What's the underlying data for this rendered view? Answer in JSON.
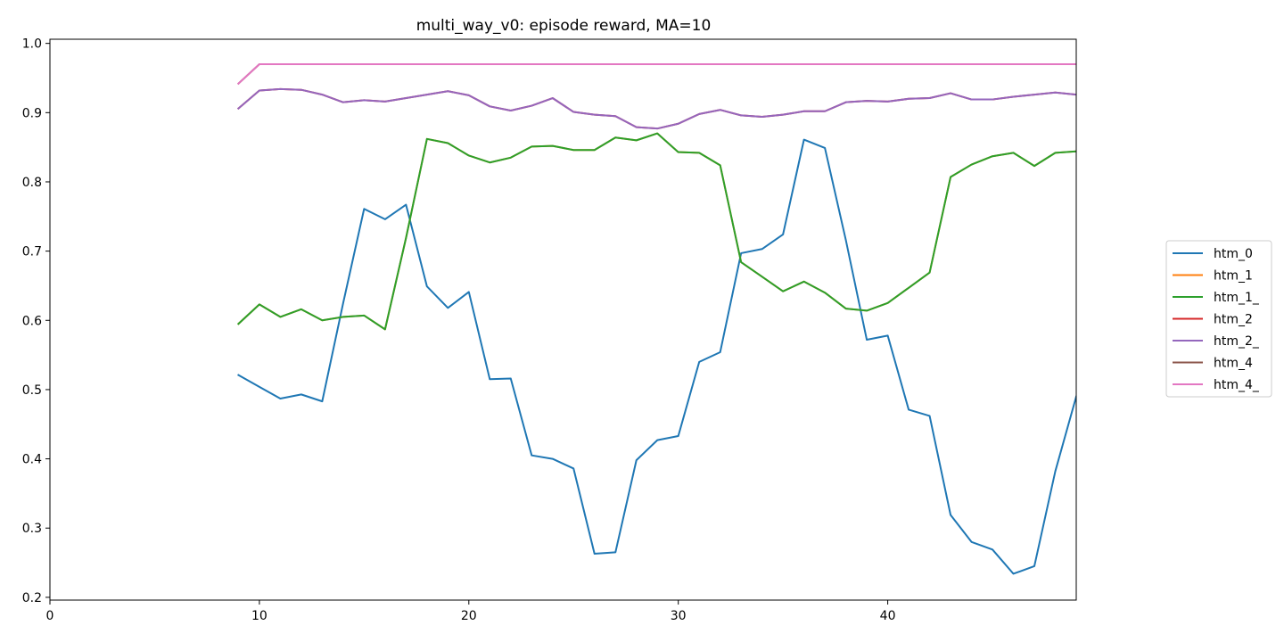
{
  "chart_data": {
    "type": "line",
    "title": "multi_way_v0: episode reward, MA=10",
    "xlabel": "",
    "ylabel": "",
    "xlim": [
      0,
      49
    ],
    "ylim": [
      0.196,
      1.006
    ],
    "xticks": [
      0,
      10,
      20,
      30,
      40
    ],
    "yticks": [
      0.2,
      0.3,
      0.4,
      0.5,
      0.6,
      0.7,
      0.8,
      0.9,
      1.0
    ],
    "grid": false,
    "legend_position": "right",
    "x": [
      9,
      10,
      11,
      12,
      13,
      14,
      15,
      16,
      17,
      18,
      19,
      20,
      21,
      22,
      23,
      24,
      25,
      26,
      27,
      28,
      29,
      30,
      31,
      32,
      33,
      34,
      35,
      36,
      37,
      38,
      39,
      40,
      41,
      42,
      43,
      44,
      45,
      46,
      47,
      48,
      49
    ],
    "series": [
      {
        "name": "htm_0",
        "color": "#1f77b4",
        "values": [
          0.521,
          0.504,
          0.487,
          0.493,
          0.483,
          0.625,
          0.761,
          0.746,
          0.767,
          0.649,
          0.618,
          0.641,
          0.515,
          0.516,
          0.405,
          0.4,
          0.386,
          0.263,
          0.265,
          0.398,
          0.427,
          0.433,
          0.54,
          0.554,
          0.697,
          0.703,
          0.724,
          0.861,
          0.849,
          0.716,
          0.572,
          0.578,
          0.471,
          0.462,
          0.319,
          0.28,
          0.269,
          0.234,
          0.245,
          0.382,
          0.49
        ]
      },
      {
        "name": "htm_1",
        "color": "#ff7f0e",
        "values": [
          0.595,
          0.623,
          0.605,
          0.616,
          0.6,
          0.605,
          0.607,
          0.587,
          0.719,
          0.862,
          0.856,
          0.838,
          0.828,
          0.835,
          0.851,
          0.852,
          0.846,
          0.846,
          0.864,
          0.86,
          0.87,
          0.843,
          0.842,
          0.824,
          0.684,
          0.663,
          0.642,
          0.656,
          0.64,
          0.617,
          0.614,
          0.625,
          0.647,
          0.669,
          0.807,
          0.825,
          0.837,
          0.842,
          0.823,
          0.842,
          0.844
        ]
      },
      {
        "name": "htm_1_",
        "color": "#2ca02c",
        "values": [
          0.595,
          0.623,
          0.605,
          0.616,
          0.6,
          0.605,
          0.607,
          0.587,
          0.719,
          0.862,
          0.856,
          0.838,
          0.828,
          0.835,
          0.851,
          0.852,
          0.846,
          0.846,
          0.864,
          0.86,
          0.87,
          0.843,
          0.842,
          0.824,
          0.684,
          0.663,
          0.642,
          0.656,
          0.64,
          0.617,
          0.614,
          0.625,
          0.647,
          0.669,
          0.807,
          0.825,
          0.837,
          0.842,
          0.823,
          0.842,
          0.844
        ]
      },
      {
        "name": "htm_2",
        "color": "#d62728",
        "values": [
          0.906,
          0.932,
          0.934,
          0.933,
          0.926,
          0.915,
          0.918,
          0.916,
          0.921,
          0.926,
          0.931,
          0.925,
          0.909,
          0.903,
          0.91,
          0.921,
          0.901,
          0.897,
          0.895,
          0.879,
          0.877,
          0.884,
          0.898,
          0.904,
          0.896,
          0.894,
          0.897,
          0.902,
          0.902,
          0.915,
          0.917,
          0.916,
          0.92,
          0.921,
          0.928,
          0.919,
          0.919,
          0.923,
          0.926,
          0.929,
          0.926
        ]
      },
      {
        "name": "htm_2_",
        "color": "#9467bd",
        "values": [
          0.906,
          0.932,
          0.934,
          0.933,
          0.926,
          0.915,
          0.918,
          0.916,
          0.921,
          0.926,
          0.931,
          0.925,
          0.909,
          0.903,
          0.91,
          0.921,
          0.901,
          0.897,
          0.895,
          0.879,
          0.877,
          0.884,
          0.898,
          0.904,
          0.896,
          0.894,
          0.897,
          0.902,
          0.902,
          0.915,
          0.917,
          0.916,
          0.92,
          0.921,
          0.928,
          0.919,
          0.919,
          0.923,
          0.926,
          0.929,
          0.926
        ]
      },
      {
        "name": "htm_4",
        "color": "#8c564b",
        "values": [
          0.942,
          0.97,
          0.97,
          0.97,
          0.97,
          0.97,
          0.97,
          0.97,
          0.97,
          0.97,
          0.97,
          0.97,
          0.97,
          0.97,
          0.97,
          0.97,
          0.97,
          0.97,
          0.97,
          0.97,
          0.97,
          0.97,
          0.97,
          0.97,
          0.97,
          0.97,
          0.97,
          0.97,
          0.97,
          0.97,
          0.97,
          0.97,
          0.97,
          0.97,
          0.97,
          0.97,
          0.97,
          0.97,
          0.97,
          0.97,
          0.97
        ]
      },
      {
        "name": "htm_4_",
        "color": "#e377c2",
        "values": [
          0.942,
          0.97,
          0.97,
          0.97,
          0.97,
          0.97,
          0.97,
          0.97,
          0.97,
          0.97,
          0.97,
          0.97,
          0.97,
          0.97,
          0.97,
          0.97,
          0.97,
          0.97,
          0.97,
          0.97,
          0.97,
          0.97,
          0.97,
          0.97,
          0.97,
          0.97,
          0.97,
          0.97,
          0.97,
          0.97,
          0.97,
          0.97,
          0.97,
          0.97,
          0.97,
          0.97,
          0.97,
          0.97,
          0.97,
          0.97,
          0.97
        ]
      }
    ]
  }
}
